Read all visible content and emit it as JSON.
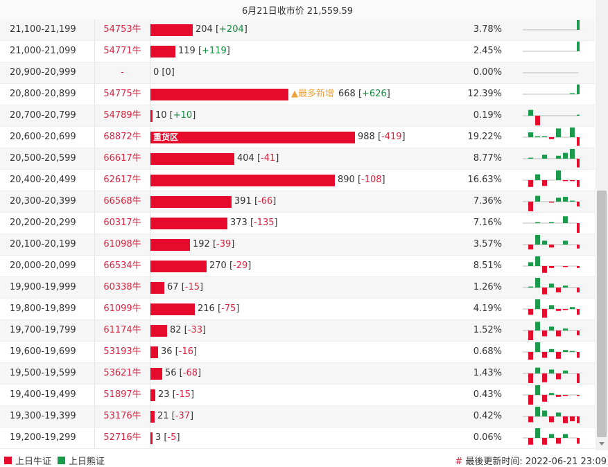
{
  "header": {
    "title": "6月21日收市价 21,559.59"
  },
  "colors": {
    "bull": "#e60b2c",
    "bear": "#1a9a4a",
    "newmax": "#f0a23a"
  },
  "rows": [
    {
      "range": "21,100-21,199",
      "bull": "54753牛",
      "value": 204,
      "change": "+204",
      "dir": "pos",
      "pct": "3.78%",
      "spark": [
        0,
        0,
        0,
        0,
        0,
        0,
        0,
        1.0
      ]
    },
    {
      "range": "21,000-21,099",
      "bull": "54771牛",
      "value": 119,
      "change": "+119",
      "dir": "pos",
      "pct": "2.45%",
      "spark": [
        0,
        0,
        0,
        0,
        0,
        0,
        0,
        1.0
      ]
    },
    {
      "range": "20,900-20,999",
      "bull": "-",
      "value": 0,
      "change": "0",
      "dir": "zero",
      "pct": "0.00%",
      "spark": [
        0,
        0,
        0,
        0,
        0,
        0,
        0,
        0
      ]
    },
    {
      "range": "20,800-20,899",
      "bull": "54775牛",
      "value": 668,
      "change": "+626",
      "dir": "pos",
      "pct": "12.39%",
      "label": "▲最多新增",
      "spark": [
        0,
        0,
        0,
        0,
        0,
        0,
        0.1,
        1.0
      ]
    },
    {
      "range": "20,700-20,799",
      "bull": "54789牛",
      "value": 10,
      "change": "+10",
      "dir": "pos",
      "pct": "0.19%",
      "spark": [
        0.6,
        -1.0,
        0,
        0,
        0,
        0,
        0,
        0.1
      ]
    },
    {
      "range": "20,600-20,699",
      "bull": "68872牛",
      "value": 988,
      "change": "-419",
      "dir": "neg",
      "pct": "19.22%",
      "label": "重货区",
      "spark": [
        0.5,
        0.1,
        0.1,
        -0.2,
        0.9,
        0,
        1.0,
        -0.9
      ]
    },
    {
      "range": "20,500-20,599",
      "bull": "66617牛",
      "value": 404,
      "change": "-41",
      "dir": "neg",
      "pct": "8.77%",
      "spark": [
        0.1,
        0,
        0.4,
        0,
        0.3,
        0.6,
        1.0,
        -0.9
      ]
    },
    {
      "range": "20,400-20,499",
      "bull": "62617牛",
      "value": 890,
      "change": "-108",
      "dir": "neg",
      "pct": "16.63%",
      "spark": [
        -0.7,
        0.6,
        -0.6,
        0,
        1.0,
        -0.1,
        -0.1,
        -0.7
      ]
    },
    {
      "range": "20,300-20,399",
      "bull": "66568牛",
      "value": 391,
      "change": "-66",
      "dir": "neg",
      "pct": "7.36%",
      "spark": [
        -1.0,
        0.6,
        0,
        -0.1,
        0.4,
        0.5,
        0.1,
        -0.5
      ]
    },
    {
      "range": "20,200-20,299",
      "bull": "60317牛",
      "value": 373,
      "change": "-135",
      "dir": "neg",
      "pct": "7.16%",
      "spark": [
        0,
        0.1,
        0,
        0.1,
        0,
        0.7,
        0,
        -1.0
      ]
    },
    {
      "range": "20,100-20,199",
      "bull": "61098牛",
      "value": 192,
      "change": "-39",
      "dir": "neg",
      "pct": "3.57%",
      "spark": [
        -0.5,
        1.0,
        0.4,
        -0.3,
        0,
        0.4,
        0,
        -0.4
      ]
    },
    {
      "range": "20,000-20,099",
      "bull": "66534牛",
      "value": 270,
      "change": "-29",
      "dir": "neg",
      "pct": "8.51%",
      "spark": [
        0.4,
        1.0,
        -0.7,
        -0.2,
        0,
        -0.1,
        0,
        -0.2
      ]
    },
    {
      "range": "19,900-19,999",
      "bull": "60338牛",
      "value": 67,
      "change": "-15",
      "dir": "neg",
      "pct": "1.26%",
      "spark": [
        0.1,
        1.0,
        -0.7,
        0.4,
        -0.5,
        0.2,
        0,
        -0.5
      ]
    },
    {
      "range": "19,800-19,899",
      "bull": "61099牛",
      "value": 216,
      "change": "-75",
      "dir": "neg",
      "pct": "4.19%",
      "spark": [
        -0.6,
        1.0,
        -0.9,
        0.4,
        -0.2,
        -0.1,
        0.2,
        -0.6
      ]
    },
    {
      "range": "19,700-19,799",
      "bull": "61174牛",
      "value": 82,
      "change": "-33",
      "dir": "neg",
      "pct": "1.52%",
      "spark": [
        -1.0,
        0.9,
        -0.6,
        0.4,
        -0.6,
        0.2,
        0,
        -0.5
      ]
    },
    {
      "range": "19,600-19,699",
      "bull": "53193牛",
      "value": 36,
      "change": "-16",
      "dir": "neg",
      "pct": "0.68%",
      "spark": [
        -0.8,
        1.0,
        -0.6,
        0.3,
        -0.7,
        0.2,
        0.1,
        -0.6
      ]
    },
    {
      "range": "19,500-19,599",
      "bull": "53621牛",
      "value": 56,
      "change": "-68",
      "dir": "neg",
      "pct": "1.43%",
      "spark": [
        -1.0,
        0.6,
        -0.9,
        0.4,
        -0.6,
        0.3,
        0,
        -1.0
      ]
    },
    {
      "range": "19,400-19,499",
      "bull": "51897牛",
      "value": 23,
      "change": "-15",
      "dir": "neg",
      "pct": "0.43%",
      "spark": [
        -1.0,
        1.0,
        -0.7,
        0.2,
        -0.2,
        -0.1,
        0,
        -0.1
      ]
    },
    {
      "range": "19,300-19,399",
      "bull": "53176牛",
      "value": 21,
      "change": "-37",
      "dir": "neg",
      "pct": "0.42%",
      "spark": [
        -0.6,
        1.0,
        0.6,
        -0.6,
        0.4,
        -0.7,
        -0.5,
        -0.7
      ]
    },
    {
      "range": "19,200-19,299",
      "bull": "52716牛",
      "value": 3,
      "change": "-5",
      "dir": "neg",
      "pct": "0.06%",
      "spark": [
        -0.7,
        1.0,
        -0.7,
        0.4,
        -0.6,
        0.4,
        0,
        -0.6
      ]
    }
  ],
  "footer": {
    "legend_bull": "上日牛证",
    "legend_bear": "上日熊证",
    "hash": "#",
    "updated": "最後更新时间: 2022-06-21 23:09"
  }
}
